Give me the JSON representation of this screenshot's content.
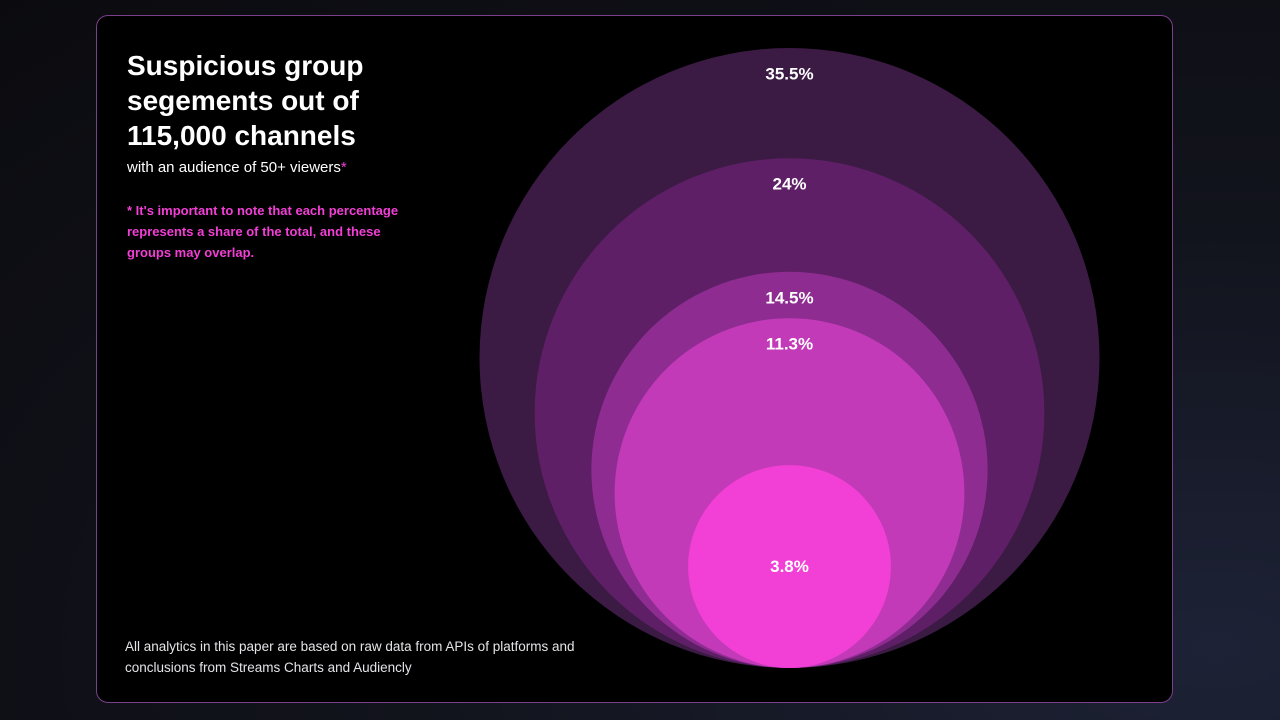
{
  "header": {
    "title": "Suspicious group segements out of 115,000 channels",
    "subtitle": "with an audience of 50+ viewers",
    "subtitle_marker": "*",
    "note": "* It's important to note that each percentage represents a share of the total, and these groups may overlap."
  },
  "footer": {
    "text": "All analytics in this paper are based on raw data from APIs of platforms and conclusions from Streams Charts and Audiencly"
  },
  "colors": {
    "accent": "#f23fd6",
    "ring_1": "#3b1a44",
    "ring_2": "#5e1f66",
    "ring_3": "#8f2c92",
    "ring_4": "#c23ab8",
    "ring_5": "#f23fd6"
  },
  "chart_data": {
    "type": "nested-circles",
    "unit": "%",
    "series": [
      {
        "label": "35.5%",
        "value": 35.5,
        "color": "#3b1a44"
      },
      {
        "label": "24%",
        "value": 24,
        "color": "#5e1f66"
      },
      {
        "label": "14.5%",
        "value": 14.5,
        "color": "#8f2c92"
      },
      {
        "label": "11.3%",
        "value": 11.3,
        "color": "#c23ab8"
      },
      {
        "label": "3.8%",
        "value": 3.8,
        "color": "#f23fd6"
      }
    ]
  }
}
